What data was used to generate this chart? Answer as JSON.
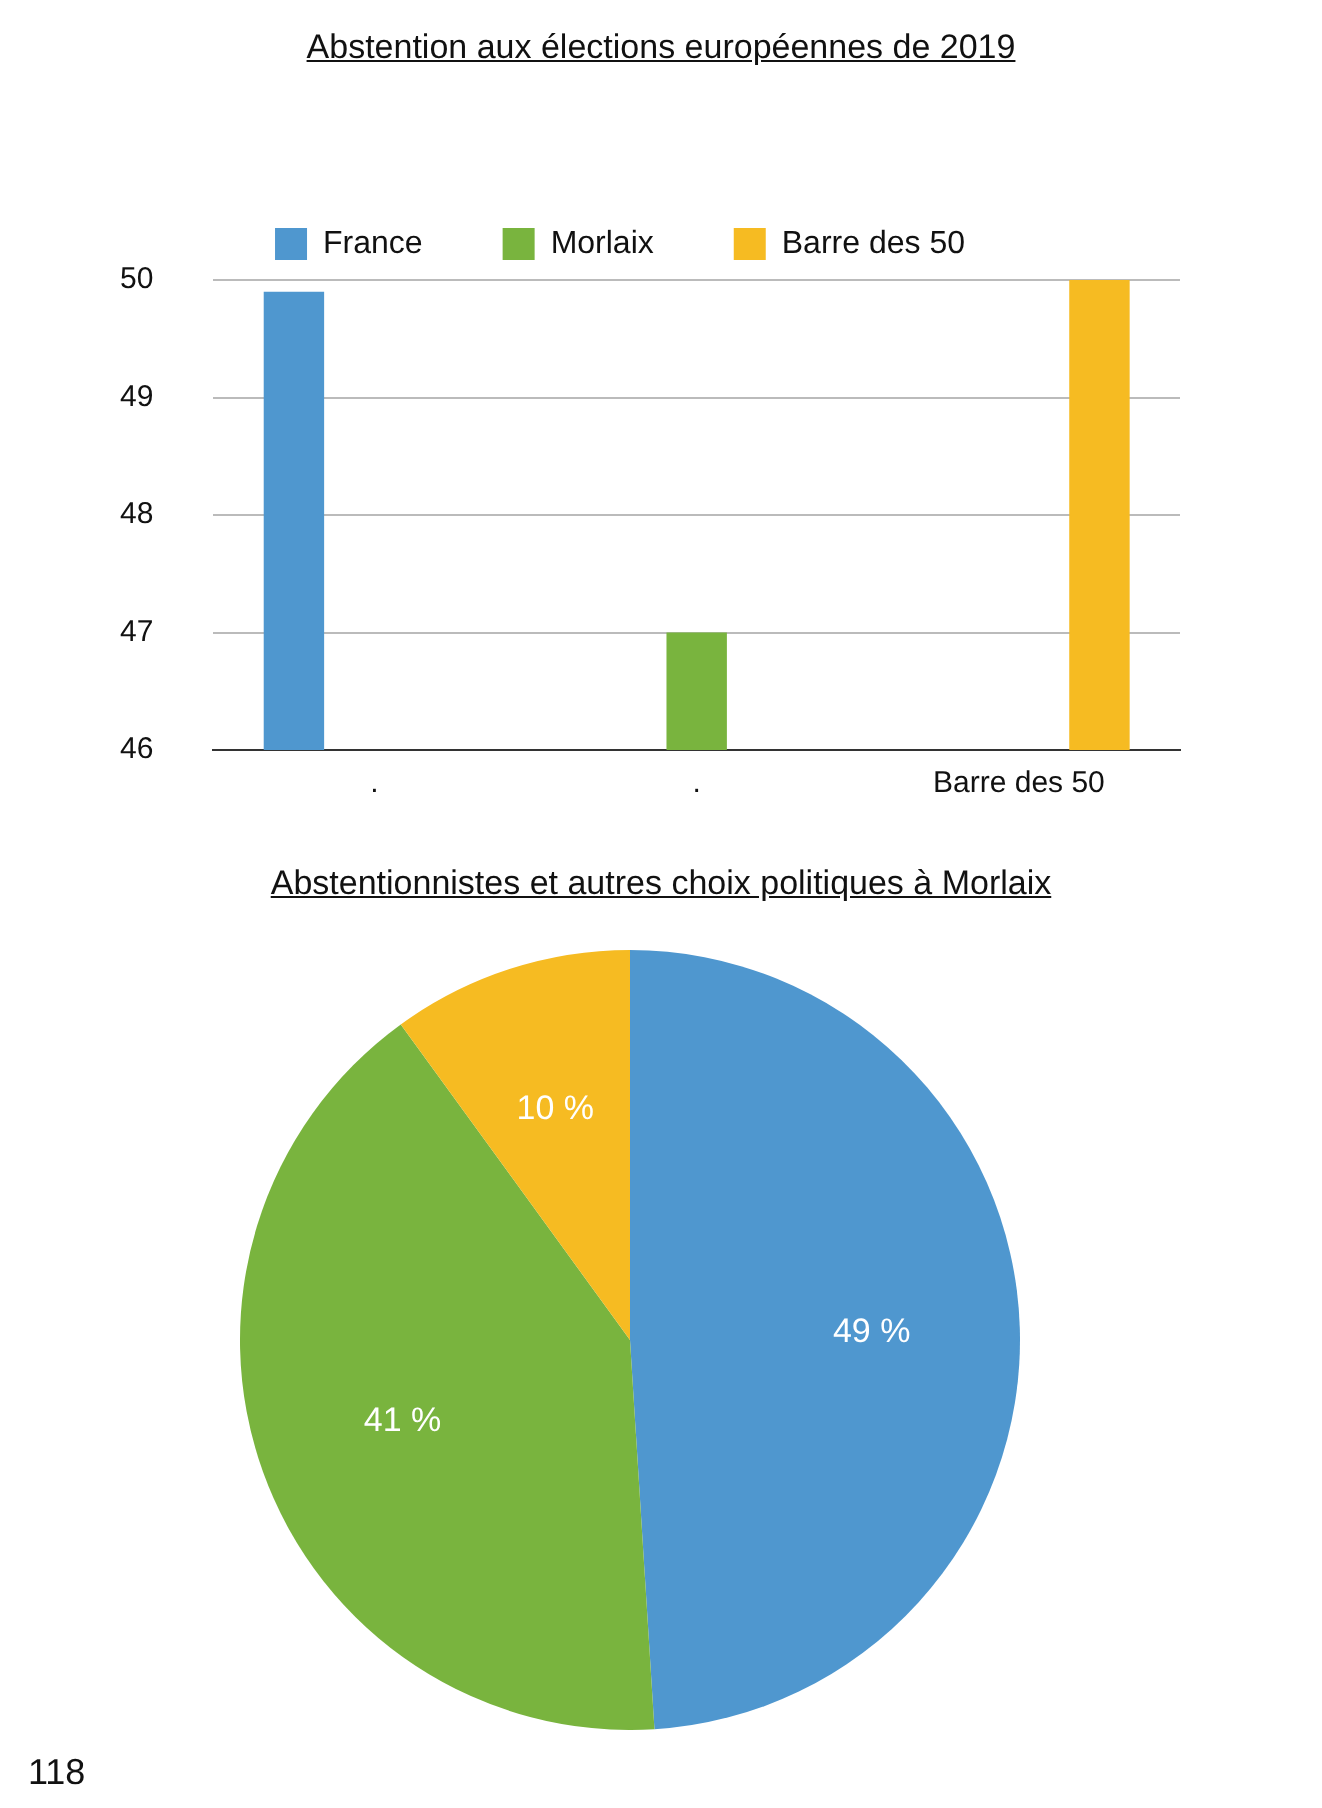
{
  "chart_data": [
    {
      "type": "bar",
      "title": "Abstention aux élections européennes de 2019",
      "categories": [
        ".",
        ".",
        "Barre des 50"
      ],
      "series": [
        {
          "name": "France",
          "color": "#4f97cf",
          "values": [
            49.9,
            null,
            null
          ]
        },
        {
          "name": "Morlaix",
          "color": "#79b43e",
          "values": [
            null,
            47,
            null
          ]
        },
        {
          "name": "Barre des 50",
          "color": "#f6bb22",
          "values": [
            null,
            null,
            50
          ]
        }
      ],
      "ylim": [
        46,
        50
      ],
      "yticks": [
        46,
        47,
        48,
        49,
        50
      ],
      "grid": "y",
      "legend": "top"
    },
    {
      "type": "pie",
      "title": "Abstentionnistes et autres choix politiques  à Morlaix",
      "categories": [
        null,
        null,
        null
      ],
      "values": [
        49,
        41,
        10
      ],
      "colors": [
        "#4f97cf",
        "#79b43e",
        "#f6bb22"
      ],
      "value_labels": [
        "49 %",
        "41 %",
        "10 %"
      ],
      "annotations": [
        "118"
      ]
    }
  ]
}
